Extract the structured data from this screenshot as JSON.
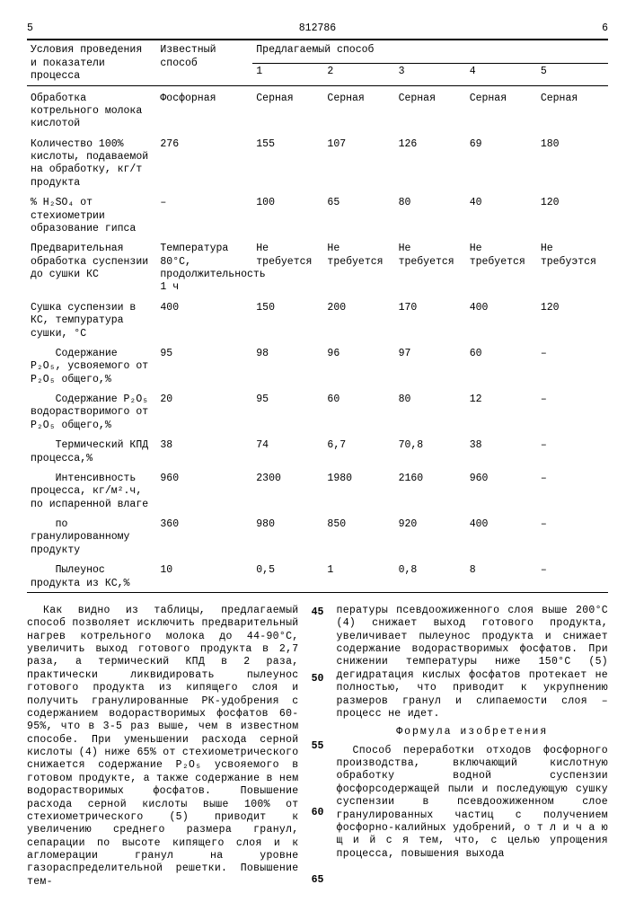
{
  "page": {
    "col_left_num": "5",
    "doc_number": "812786",
    "col_right_num": "6"
  },
  "table": {
    "header": {
      "conditions": "Условия проведения и показатели процесса",
      "known": "Известный способ",
      "proposed": "Предлагаемый способ",
      "cols": [
        "1",
        "2",
        "3",
        "4",
        "5"
      ]
    },
    "rows": [
      {
        "label": "Обработка котрельного молока кислотой",
        "known": "Фосфорная",
        "v": [
          "Серная",
          "Серная",
          "Серная",
          "Серная",
          "Серная"
        ]
      },
      {
        "label": "Количество 100% кислоты, подаваемой на обработку, кг/т продукта",
        "known": "276",
        "v": [
          "155",
          "107",
          "126",
          "69",
          "180"
        ]
      },
      {
        "label": "% H₂SO₄ от стехиометрии образование гипса",
        "known": "–",
        "v": [
          "100",
          "65",
          "80",
          "40",
          "120"
        ]
      },
      {
        "label": "Предварительная обработка суспензии до сушки КС",
        "known": "Температура 80°С, продолжительность 1 ч",
        "v": [
          "Не требуется",
          "Не требуется",
          "Не требуется",
          "Не требуется",
          "Не требуэтся"
        ]
      },
      {
        "label": "Сушка суспензии в КС, темпуратура сушки, °С",
        "known": "400",
        "v": [
          "150",
          "200",
          "170",
          "400",
          "120"
        ]
      },
      {
        "label": "    Содержание P₂O₅, усвояемого от P₂O₅ общего,%",
        "known": "95",
        "v": [
          "98",
          "96",
          "97",
          "60",
          "–"
        ]
      },
      {
        "label": "    Содержание P₂O₅ водорастворимого от P₂O₅ общего,%",
        "known": "20",
        "v": [
          "95",
          "60",
          "80",
          "12",
          "–"
        ]
      },
      {
        "label": "    Термический КПД процесса,%",
        "known": "38",
        "v": [
          "74",
          "6,7",
          "70,8",
          "38",
          "–"
        ]
      },
      {
        "label": "    Интенсивность процесса, кг/м².ч, по испаренной влаге",
        "known": "960",
        "v": [
          "2300",
          "1980",
          "2160",
          "960",
          "–"
        ]
      },
      {
        "label": "    по гранулированному продукту",
        "known": "360",
        "v": [
          "980",
          "850",
          "920",
          "400",
          "–"
        ]
      },
      {
        "label": "    Пылеунос продукта из КС,%",
        "known": "10",
        "v": [
          "0,5",
          "1",
          "0,8",
          "8",
          "–"
        ]
      }
    ]
  },
  "text": {
    "p1a": "Как видно из таблицы, предлагаемый способ позволяет исключить предварительный нагрев котрельного молока до 44-90°С, увеличить выход готового продукта в 2,7 раза, а термический КПД в 2 раза, практически ликвидировать пылеунос готового продукта из кипящего слоя и получить гранулированные РК-удобрения с содержанием водорастворимых фосфатов 60-95%, что в 3-5 раз выше, чем в известном способе. При уменьшении расхода серной кислоты (4) ниже 65% от стехиометрического снижается содержание P₂O₅ усвояемого в готовом продукте, а также содержание в нем водорастворимых фосфатов. Повышение расхода серной кислоты выше 100% от стехиометрического (5) приводит к увеличению среднего размера гранул, сепарации по высоте кипящего слоя и к агломерации гранул на уровне газораспределительной решетки. Повышение тем-",
    "p1b": "пературы псевдоожиженного слоя выше 200°С (4) снижает выход готового продукта, увеличивает пылеунос продукта и снижает содержание водорастворимых фосфатов. При снижении температуры ниже  150°С (5) дегидратация кислых фосфатов протекает не полностью, что приводит к укрупнению размеров гранул и слипаемости слоя – процесс не идет.",
    "formula_title": "Формула изобретения",
    "p2": "Способ переработки отходов фосфорного производства, включающий кислотную обработку водной суспензии фосфорсодержащей пыли и последующую сушку суспензии в псевдоожиженном слое гранулированных частиц с получением фосфорно-калийных удобрений, о т л и ч а ю щ и й с я  тем, что, с целью упрощения процесса, повышения выхода",
    "ln45": "45",
    "ln50": "50",
    "ln55": "55",
    "ln60": "60",
    "ln65": "65"
  }
}
